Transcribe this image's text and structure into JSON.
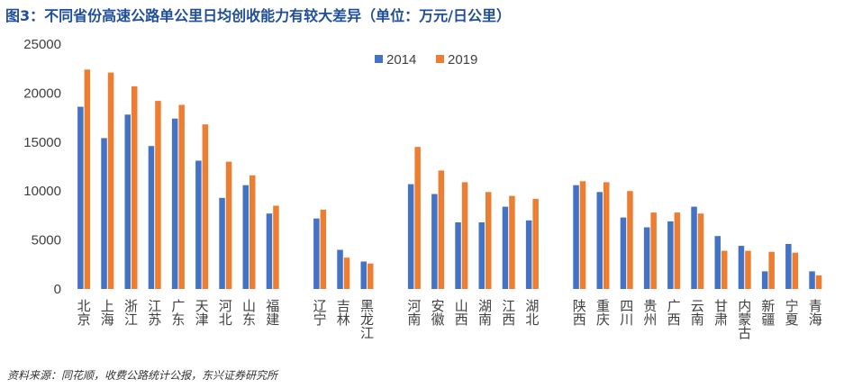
{
  "header": {
    "title": "图3：不同省份高速公路单公里日均创收能力有较大差异（单位：万元/日公里）"
  },
  "footer": {
    "source": "资料来源：同花顺，收费公路统计公报，东兴证券研究所"
  },
  "colors": {
    "series_2014": "#4472c4",
    "series_2019": "#ed7d31",
    "title": "#1f4e9a"
  },
  "chart_data": {
    "type": "bar",
    "title": "图3：不同省份高速公路单公里日均创收能力有较大差异（单位：万元/日公里）",
    "ylim": [
      0,
      25000
    ],
    "yticks": [
      0,
      5000,
      10000,
      15000,
      20000,
      25000
    ],
    "grid": false,
    "legend": "top-center",
    "groups": [
      [
        "北京",
        "上海",
        "浙江",
        "江苏",
        "广东",
        "天津",
        "河北",
        "山东",
        "福建"
      ],
      [
        "辽宁",
        "吉林",
        "黑龙江"
      ],
      [
        "河南",
        "安徽",
        "山西",
        "湖南",
        "江西",
        "湖北"
      ],
      [
        "陕西",
        "重庆",
        "四川",
        "贵州",
        "广西",
        "云南",
        "甘肃",
        "内蒙古",
        "新疆",
        "宁夏",
        "青海"
      ]
    ],
    "categories": [
      "北京",
      "上海",
      "浙江",
      "江苏",
      "广东",
      "天津",
      "河北",
      "山东",
      "福建",
      "辽宁",
      "吉林",
      "黑龙江",
      "河南",
      "安徽",
      "山西",
      "湖南",
      "江西",
      "湖北",
      "陕西",
      "重庆",
      "四川",
      "贵州",
      "广西",
      "云南",
      "甘肃",
      "内蒙古",
      "新疆",
      "宁夏",
      "青海"
    ],
    "series": [
      {
        "name": "2014",
        "values": [
          18600,
          15400,
          17800,
          14600,
          17400,
          13100,
          9300,
          10600,
          7700,
          7200,
          4000,
          2800,
          10700,
          9700,
          6800,
          6800,
          8400,
          7000,
          10600,
          9900,
          7300,
          6300,
          6900,
          8400,
          5400,
          4400,
          1800,
          4600,
          1800
        ]
      },
      {
        "name": "2019",
        "values": [
          22400,
          22100,
          20700,
          19200,
          18800,
          16800,
          13000,
          11600,
          8500,
          8100,
          3200,
          2600,
          14500,
          12100,
          10900,
          9900,
          9500,
          9200,
          11000,
          10900,
          10000,
          7800,
          7800,
          7700,
          3900,
          3900,
          3800,
          3700,
          1400
        ]
      }
    ]
  }
}
